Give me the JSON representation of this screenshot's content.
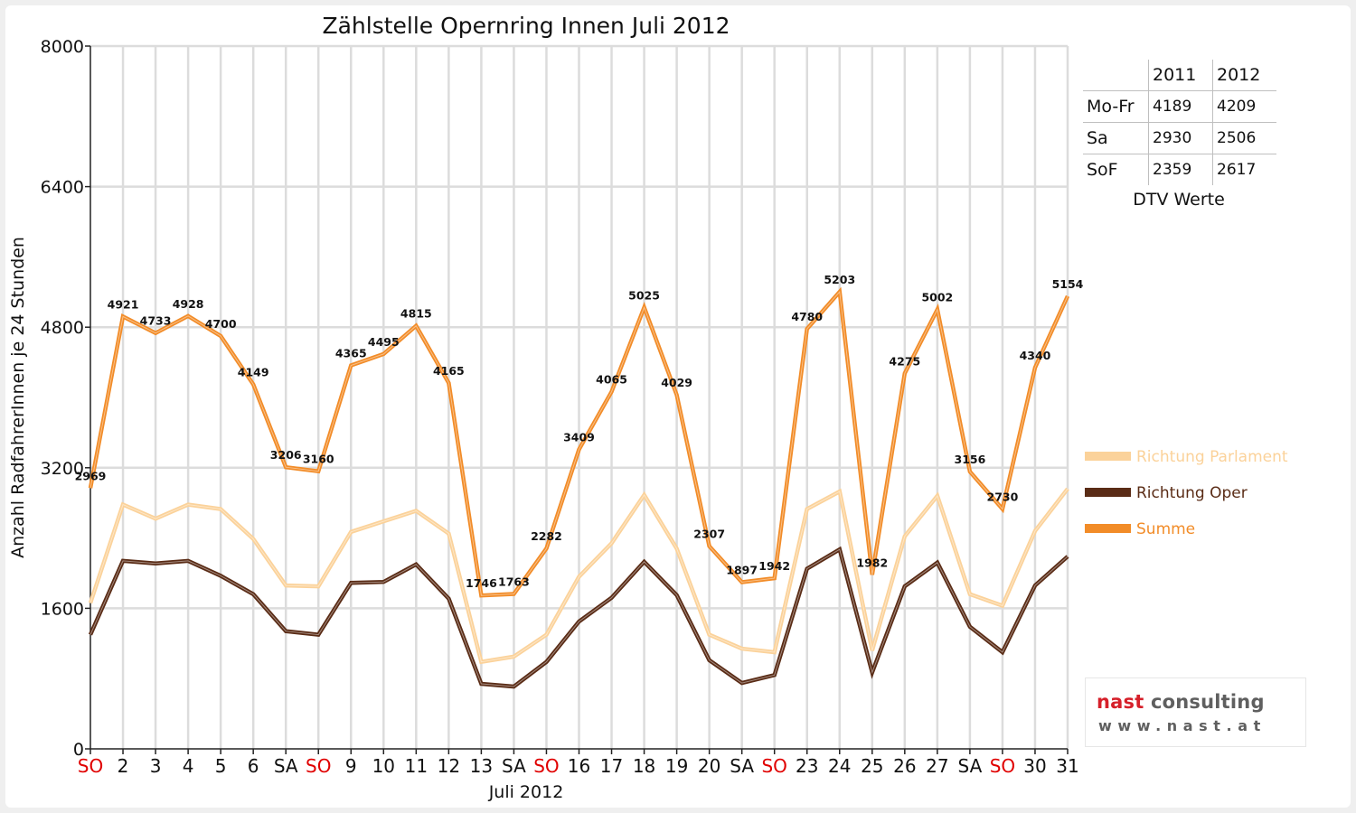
{
  "chart_data": {
    "type": "line",
    "title": "Zählstelle Opernring Innen Juli 2012",
    "xlabel": "Juli 2012",
    "ylabel": "Anzahl RadfahrerInnen je 24 Stunden",
    "ylim": [
      0,
      8000
    ],
    "yticks": [
      "0",
      "1600",
      "3200",
      "4800",
      "6400",
      "8000"
    ],
    "grid": true,
    "legend_position": "right",
    "categories": [
      "SO",
      "2",
      "3",
      "4",
      "5",
      "6",
      "SA",
      "SO",
      "9",
      "10",
      "11",
      "12",
      "13",
      "SA",
      "SO",
      "16",
      "17",
      "18",
      "19",
      "20",
      "SA",
      "SO",
      "23",
      "24",
      "25",
      "26",
      "27",
      "SA",
      "SO",
      "30",
      "31"
    ],
    "category_colors": [
      "#e00000",
      "#111111",
      "#111111",
      "#111111",
      "#111111",
      "#111111",
      "#111111",
      "#e00000",
      "#111111",
      "#111111",
      "#111111",
      "#111111",
      "#111111",
      "#111111",
      "#e00000",
      "#111111",
      "#111111",
      "#111111",
      "#111111",
      "#111111",
      "#111111",
      "#e00000",
      "#111111",
      "#111111",
      "#111111",
      "#111111",
      "#111111",
      "#111111",
      "#e00000",
      "#111111",
      "#111111"
    ],
    "series": [
      {
        "name": "Richtung Parlament",
        "color": "#fbd29a",
        "values": [
          1660,
          2780,
          2620,
          2780,
          2730,
          2390,
          1860,
          1850,
          2470,
          2590,
          2710,
          2450,
          990,
          1050,
          1300,
          1960,
          2340,
          2890,
          2280,
          1300,
          1140,
          1100,
          2730,
          2930,
          1120,
          2420,
          2880,
          1760,
          1630,
          2480,
          2960
        ]
      },
      {
        "name": "Richtung Oper",
        "color": "#5a2c16",
        "values": [
          1300,
          2140,
          2110,
          2140,
          1970,
          1760,
          1340,
          1300,
          1890,
          1900,
          2100,
          1710,
          740,
          710,
          990,
          1450,
          1720,
          2130,
          1750,
          1010,
          750,
          840,
          2050,
          2270,
          870,
          1850,
          2120,
          1390,
          1100,
          1860,
          2190
        ]
      },
      {
        "name": "Summe",
        "color": "#f28c28",
        "values": [
          2969,
          4921,
          4733,
          4928,
          4700,
          4149,
          3206,
          3160,
          4365,
          4495,
          4815,
          4165,
          1746,
          1763,
          2282,
          3409,
          4065,
          5025,
          4029,
          2307,
          1897,
          1942,
          4780,
          5203,
          1982,
          4275,
          5002,
          3156,
          2730,
          4340,
          5154
        ],
        "labels": [
          "2969",
          "4921",
          "4733",
          "4928",
          "4700",
          "4149",
          "3206",
          "3160",
          "4365",
          "4495",
          "4815",
          "4165",
          "1746",
          "1763",
          "2282",
          "3409",
          "4065",
          "5025",
          "4029",
          "2307",
          "1897",
          "1942",
          "4780",
          "5203",
          "1982",
          "4275",
          "5002",
          "3156",
          "2730",
          "4340",
          "5154"
        ]
      }
    ]
  },
  "dtv_table": {
    "headers": [
      "",
      "2011",
      "2012"
    ],
    "rows": [
      {
        "label": "Mo-Fr",
        "y2011": "4189",
        "y2012": "4209"
      },
      {
        "label": "Sa",
        "y2011": "2930",
        "y2012": "2506"
      },
      {
        "label": "SoF",
        "y2011": "2359",
        "y2012": "2617"
      }
    ],
    "caption": "DTV Werte"
  },
  "logo": {
    "name_part1": "nast",
    "name_part2": " consulting",
    "url": "www.nast.at"
  }
}
